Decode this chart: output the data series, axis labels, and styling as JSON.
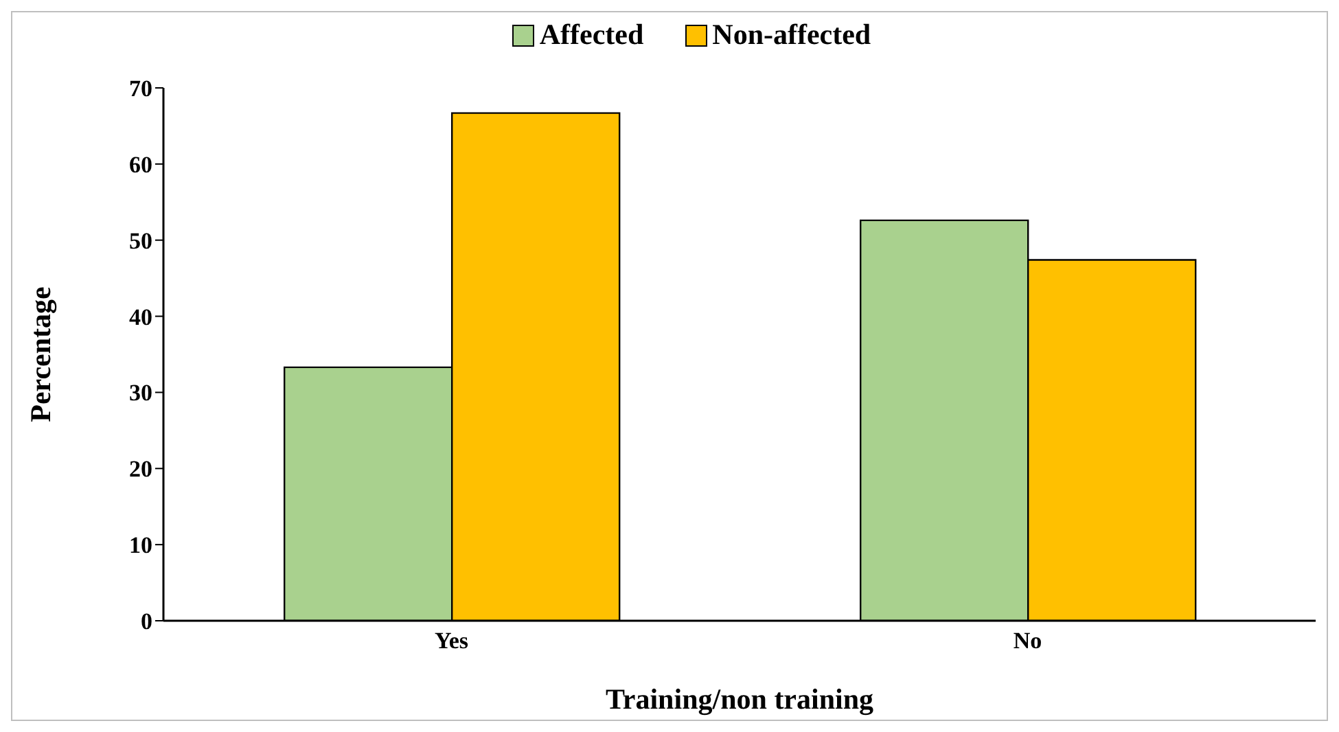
{
  "chart_data": {
    "type": "bar",
    "xlabel": "Training/non training",
    "ylabel": "Percentage",
    "categories": [
      "Yes",
      "No"
    ],
    "series": [
      {
        "name": "Affected",
        "color": "#a9d18e",
        "values": [
          33.3,
          52.6
        ]
      },
      {
        "name": "Non-affected",
        "color": "#ffc000",
        "values": [
          66.7,
          47.4
        ]
      }
    ],
    "ylim": [
      0,
      70
    ],
    "yticks": [
      0,
      10,
      20,
      30,
      40,
      50,
      60,
      70
    ],
    "grid": false,
    "legend": "top"
  }
}
